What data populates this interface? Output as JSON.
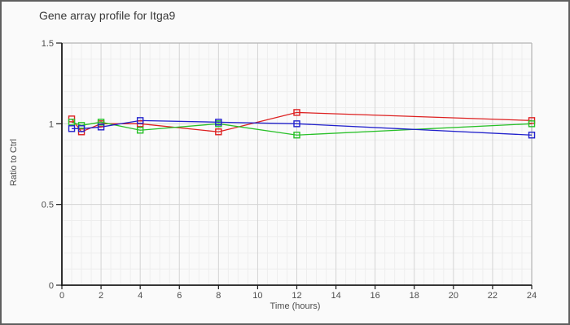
{
  "window": {
    "background": "#fafafa",
    "border_color": "#5f5f5f"
  },
  "chart_data": {
    "type": "line",
    "title": "Gene array profile for Itga9",
    "xlabel": "Time (hours)",
    "ylabel": "Ratio to Ctrl",
    "xlim": [
      0,
      24
    ],
    "ylim": [
      0,
      1.5
    ],
    "x_tick_labels": [
      0,
      2,
      4,
      6,
      8,
      10,
      12,
      14,
      16,
      18,
      20,
      22,
      24
    ],
    "y_tick_labels": [
      0,
      0.5,
      1,
      1.5
    ],
    "x_minor_step": 0.5,
    "y_minor_step": 0.1,
    "grid": true,
    "legend": "none",
    "x": [
      0.5,
      1,
      2,
      4,
      8,
      12,
      24
    ],
    "series": [
      {
        "name": "red",
        "color": "#dd2020",
        "marker": "square",
        "values": [
          1.03,
          0.95,
          1.0,
          1.0,
          0.95,
          1.07,
          1.02
        ]
      },
      {
        "name": "green",
        "color": "#28c028",
        "marker": "square",
        "values": [
          1.01,
          0.99,
          1.01,
          0.96,
          1.0,
          0.93,
          1.0
        ]
      },
      {
        "name": "blue",
        "color": "#2121cc",
        "marker": "square",
        "values": [
          0.97,
          0.97,
          0.98,
          1.02,
          1.01,
          1.0,
          0.93
        ]
      }
    ],
    "colors": {
      "axis": "#1a1a1a",
      "tick_label": "#4d4d4d",
      "grid_minor": "#eeeeee",
      "grid_major": "#d4d4d4",
      "plot_border": "#b5b5b5"
    }
  }
}
